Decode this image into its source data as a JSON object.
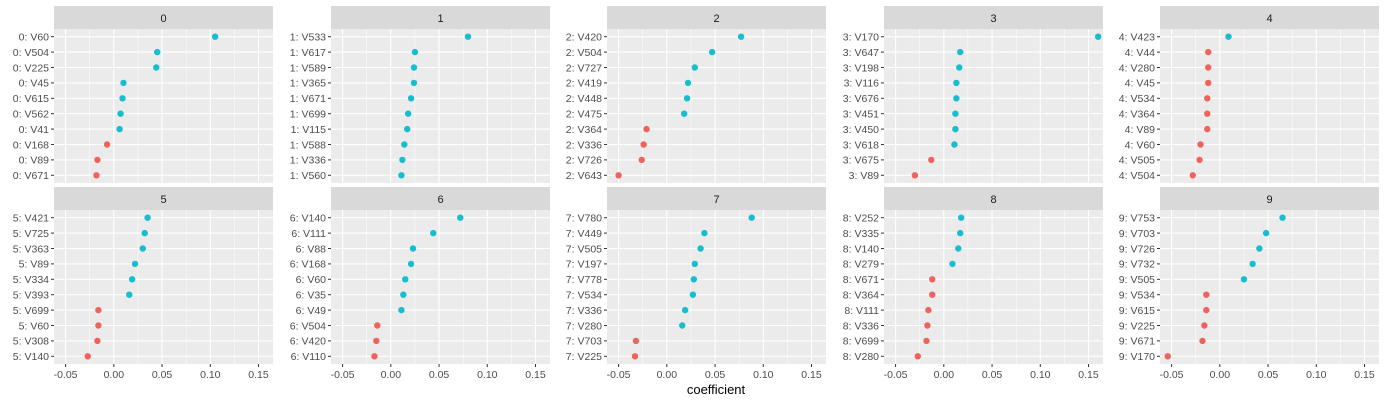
{
  "chart_data": {
    "type": "scatter",
    "layout": "faceted dot plot, 2 rows x 5 columns, independent y (terms) per facet, shared x",
    "xlabel": "coefficient",
    "xlim": [
      -0.062,
      0.165
    ],
    "xticks": [
      -0.05,
      0.0,
      0.05,
      0.1,
      0.15
    ],
    "xtick_labels": [
      "-0.05",
      "0.00",
      "0.05",
      "0.10",
      "0.15"
    ],
    "grid": true,
    "legend": "none",
    "colors": {
      "positive": "#17BECF",
      "negative": "#F0635C",
      "panel_bg": "#EBEBEB",
      "strip_bg": "#D9D9D9",
      "grid": "#FFFFFF"
    },
    "facets": [
      {
        "label": "0",
        "terms": [
          "0: V60",
          "0: V504",
          "0: V225",
          "0: V45",
          "0: V615",
          "0: V562",
          "0: V41",
          "0: V168",
          "0: V89",
          "0: V671"
        ],
        "values": [
          0.105,
          0.045,
          0.044,
          0.01,
          0.009,
          0.007,
          0.006,
          -0.007,
          -0.017,
          -0.018
        ]
      },
      {
        "label": "1",
        "terms": [
          "1: V533",
          "1: V617",
          "1: V589",
          "1: V365",
          "1: V671",
          "1: V699",
          "1: V115",
          "1: V588",
          "1: V336",
          "1: V560"
        ],
        "values": [
          0.08,
          0.025,
          0.024,
          0.024,
          0.021,
          0.018,
          0.017,
          0.014,
          0.012,
          0.011
        ]
      },
      {
        "label": "2",
        "terms": [
          "2: V420",
          "2: V504",
          "2: V727",
          "2: V419",
          "2: V448",
          "2: V475",
          "2: V364",
          "2: V336",
          "2: V726",
          "2: V643"
        ],
        "values": [
          0.077,
          0.047,
          0.029,
          0.022,
          0.021,
          0.018,
          -0.021,
          -0.024,
          -0.026,
          -0.05
        ]
      },
      {
        "label": "3",
        "terms": [
          "3: V170",
          "3: V647",
          "3: V198",
          "3: V116",
          "3: V676",
          "3: V451",
          "3: V450",
          "3: V618",
          "3: V675",
          "3: V89"
        ],
        "values": [
          0.16,
          0.017,
          0.016,
          0.013,
          0.013,
          0.012,
          0.012,
          0.011,
          -0.013,
          -0.03
        ]
      },
      {
        "label": "4",
        "terms": [
          "4: V423",
          "4: V44",
          "4: V280",
          "4: V45",
          "4: V534",
          "4: V364",
          "4: V89",
          "4: V60",
          "4: V505",
          "4: V504"
        ],
        "values": [
          0.009,
          -0.012,
          -0.012,
          -0.012,
          -0.013,
          -0.013,
          -0.013,
          -0.02,
          -0.021,
          -0.028
        ]
      },
      {
        "label": "5",
        "terms": [
          "5: V421",
          "5: V725",
          "5: V363",
          "5: V89",
          "5: V334",
          "5: V393",
          "5: V699",
          "5: V60",
          "5: V308",
          "5: V140"
        ],
        "values": [
          0.035,
          0.032,
          0.03,
          0.022,
          0.019,
          0.016,
          -0.016,
          -0.016,
          -0.017,
          -0.027
        ]
      },
      {
        "label": "6",
        "terms": [
          "6: V140",
          "6: V111",
          "6: V88",
          "6: V168",
          "6: V60",
          "6: V35",
          "6: V49",
          "6: V504",
          "6: V420",
          "6: V110"
        ],
        "values": [
          0.072,
          0.044,
          0.023,
          0.021,
          0.015,
          0.013,
          0.011,
          -0.014,
          -0.015,
          -0.017
        ]
      },
      {
        "label": "7",
        "terms": [
          "7: V780",
          "7: V449",
          "7: V505",
          "7: V197",
          "7: V778",
          "7: V534",
          "7: V336",
          "7: V280",
          "7: V703",
          "7: V225"
        ],
        "values": [
          0.088,
          0.039,
          0.035,
          0.029,
          0.028,
          0.027,
          0.019,
          0.016,
          -0.032,
          -0.033
        ]
      },
      {
        "label": "8",
        "terms": [
          "8: V252",
          "8: V335",
          "8: V140",
          "8: V279",
          "8: V671",
          "8: V364",
          "8: V111",
          "8: V336",
          "8: V699",
          "8: V280"
        ],
        "values": [
          0.018,
          0.017,
          0.015,
          0.009,
          -0.012,
          -0.012,
          -0.016,
          -0.017,
          -0.018,
          -0.027
        ]
      },
      {
        "label": "9",
        "terms": [
          "9: V753",
          "9: V703",
          "9: V726",
          "9: V732",
          "9: V505",
          "9: V534",
          "9: V615",
          "9: V225",
          "9: V671",
          "9: V170"
        ],
        "values": [
          0.065,
          0.048,
          0.041,
          0.034,
          0.025,
          -0.014,
          -0.014,
          -0.016,
          -0.018,
          -0.054
        ]
      }
    ]
  }
}
